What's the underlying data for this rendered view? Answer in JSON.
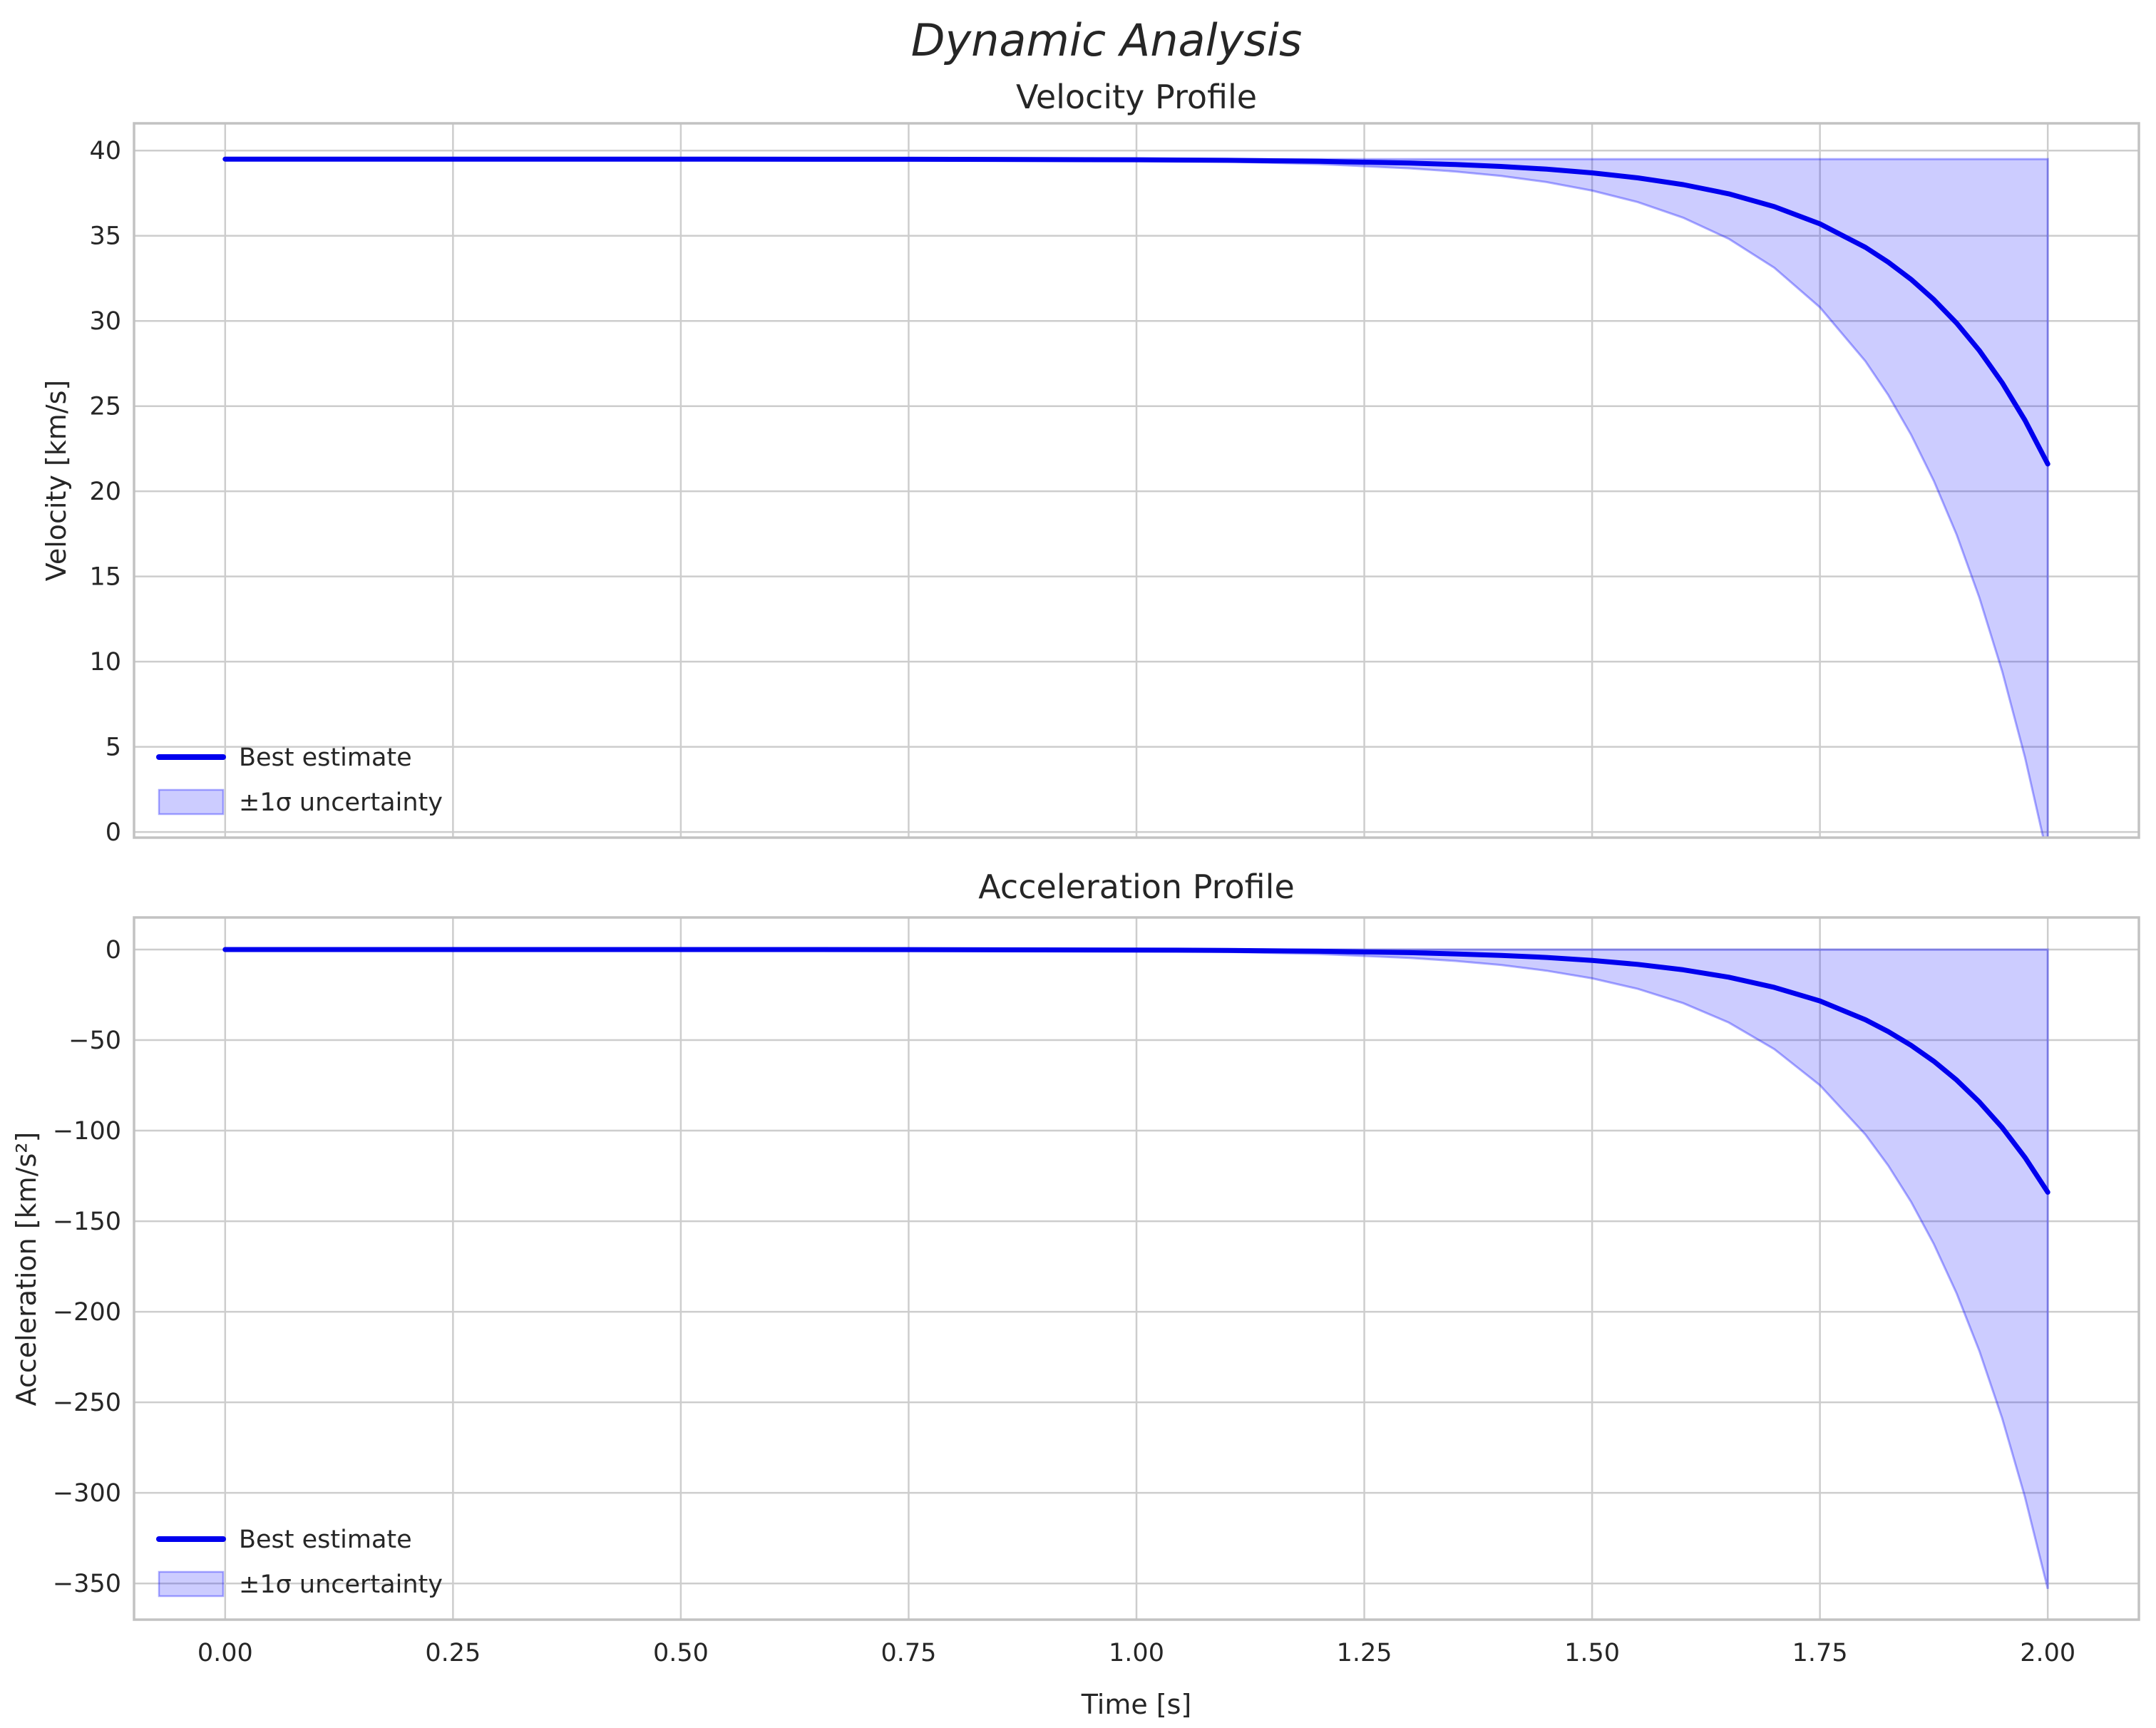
{
  "figure": {
    "title": "Dynamic Analysis",
    "background_color": "#ffffff",
    "text_color": "#262626",
    "grid_color": "#cdcdcd",
    "spine_color": "#c2c2c2",
    "line_color": "#0000ee",
    "band_color": "#0000ff",
    "band_fill_opacity": 0.2,
    "band_edge_opacity": 0.32
  },
  "legend": {
    "line_label": "Best estimate",
    "band_label": "±1σ uncertainty",
    "position": "lower left",
    "frame": false
  },
  "chart_data": [
    {
      "type": "line",
      "title": "Velocity Profile",
      "xlabel": "",
      "ylabel": "Velocity [km/s]",
      "grid": true,
      "legend_position": "lower left",
      "xlim": [
        -0.1,
        2.1
      ],
      "ylim": [
        -0.33,
        41.6
      ],
      "xticks": {
        "values": [
          0,
          0.25,
          0.5,
          0.75,
          1.0,
          1.25,
          1.5,
          1.75,
          2.0
        ],
        "labels": [
          "0.00",
          "0.25",
          "0.50",
          "0.75",
          "1.00",
          "1.25",
          "1.50",
          "1.75",
          "2.00"
        ],
        "show_labels": false
      },
      "yticks": {
        "values": [
          0,
          5,
          10,
          15,
          20,
          25,
          30,
          35,
          40
        ],
        "labels": [
          "0",
          "5",
          "10",
          "15",
          "20",
          "25",
          "30",
          "35",
          "40"
        ]
      },
      "x": [
        0,
        0.25,
        0.5,
        0.75,
        1.0,
        1.1,
        1.2,
        1.3,
        1.35,
        1.4,
        1.45,
        1.5,
        1.55,
        1.6,
        1.65,
        1.7,
        1.75,
        1.8,
        1.825,
        1.85,
        1.875,
        1.9,
        1.925,
        1.95,
        1.975,
        2.0
      ],
      "series": [
        {
          "name": "Best estimate",
          "values": [
            39.5,
            39.5,
            39.5,
            39.49,
            39.46,
            39.43,
            39.37,
            39.27,
            39.18,
            39.07,
            38.91,
            38.69,
            38.4,
            38.0,
            37.46,
            36.71,
            35.7,
            34.32,
            33.45,
            32.44,
            31.25,
            29.87,
            28.26,
            26.37,
            24.17,
            21.6
          ]
        },
        {
          "name": "+1σ bound",
          "values": [
            39.5,
            39.5,
            39.5,
            39.5,
            39.5,
            39.5,
            39.5,
            39.5,
            39.5,
            39.5,
            39.5,
            39.5,
            39.5,
            39.5,
            39.5,
            39.5,
            39.5,
            39.5,
            39.5,
            39.5,
            39.5,
            39.5,
            39.5,
            39.5,
            39.5,
            39.5
          ]
        },
        {
          "name": "-1σ bound",
          "values": [
            39.5,
            39.5,
            39.5,
            39.48,
            39.42,
            39.35,
            39.21,
            38.96,
            38.77,
            38.51,
            38.15,
            37.65,
            36.98,
            36.06,
            34.82,
            33.12,
            30.8,
            27.63,
            25.65,
            23.32,
            20.61,
            17.45,
            13.75,
            9.43,
            4.39,
            -1.5
          ]
        }
      ]
    },
    {
      "type": "line",
      "title": "Acceleration Profile",
      "xlabel": "Time [s]",
      "ylabel": "Acceleration [km/s²]",
      "grid": true,
      "legend_position": "lower left",
      "xlim": [
        -0.1,
        2.1
      ],
      "ylim": [
        -370,
        17.7
      ],
      "xticks": {
        "values": [
          0,
          0.25,
          0.5,
          0.75,
          1.0,
          1.25,
          1.5,
          1.75,
          2.0
        ],
        "labels": [
          "0.00",
          "0.25",
          "0.50",
          "0.75",
          "1.00",
          "1.25",
          "1.50",
          "1.75",
          "2.00"
        ],
        "show_labels": true
      },
      "yticks": {
        "values": [
          0,
          -50,
          -100,
          -150,
          -200,
          -250,
          -300,
          -350
        ],
        "labels": [
          "0",
          "−50",
          "−100",
          "−150",
          "−200",
          "−250",
          "−300",
          "−350"
        ]
      },
      "x": [
        0,
        0.25,
        0.5,
        0.75,
        1.0,
        1.1,
        1.2,
        1.3,
        1.35,
        1.4,
        1.45,
        1.5,
        1.55,
        1.6,
        1.65,
        1.7,
        1.75,
        1.8,
        1.825,
        1.85,
        1.875,
        1.9,
        1.925,
        1.95,
        1.975,
        2.0
      ],
      "series": [
        {
          "name": "Best estimate",
          "values": [
            0,
            0,
            -0.01,
            -0.06,
            -0.27,
            -0.5,
            -0.94,
            -1.76,
            -2.4,
            -3.24,
            -4.4,
            -6.03,
            -8.2,
            -11.2,
            -15.3,
            -20.9,
            -28.4,
            -38.8,
            -45.3,
            -52.9,
            -61.7,
            -72.1,
            -84.2,
            -98.3,
            -114.8,
            -134
          ]
        },
        {
          "name": "+1σ bound",
          "values": [
            0,
            0,
            0,
            0,
            0,
            0,
            0,
            0,
            0,
            0,
            0,
            0,
            0,
            0,
            0,
            0,
            0,
            0,
            0,
            0,
            0,
            0,
            0,
            0,
            0,
            0
          ]
        },
        {
          "name": "-1σ bound",
          "values": [
            0,
            0,
            -0.03,
            -0.15,
            -0.72,
            -1.33,
            -2.47,
            -4.6,
            -6.3,
            -8.5,
            -11.7,
            -15.9,
            -21.7,
            -29.6,
            -40.3,
            -55.0,
            -74.9,
            -102.2,
            -119.3,
            -139.3,
            -162.6,
            -189.9,
            -221.7,
            -258.9,
            -302.3,
            -353
          ]
        }
      ]
    }
  ]
}
